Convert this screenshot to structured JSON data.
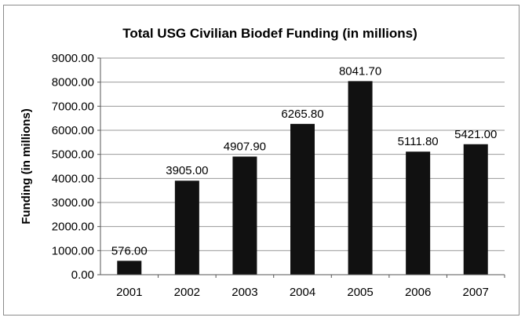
{
  "chart_data": {
    "type": "bar",
    "title": "Total USG Civilian Biodef Funding (in millions)",
    "xlabel": "",
    "ylabel": "Funding (in millions)",
    "categories": [
      "2001",
      "2002",
      "2003",
      "2004",
      "2005",
      "2006",
      "2007"
    ],
    "values": [
      576.0,
      3905.0,
      4907.9,
      6265.8,
      8041.7,
      5111.8,
      5421.0
    ],
    "value_labels": [
      "576.00",
      "3905.00",
      "4907.90",
      "6265.80",
      "8041.70",
      "5111.80",
      "5421.00"
    ],
    "ylim": [
      0,
      9000
    ],
    "yticks": [
      0,
      1000,
      2000,
      3000,
      4000,
      5000,
      6000,
      7000,
      8000,
      9000
    ],
    "ytick_labels": [
      "0.00",
      "1000.00",
      "2000.00",
      "3000.00",
      "4000.00",
      "5000.00",
      "6000.00",
      "7000.00",
      "8000.00",
      "9000.00"
    ],
    "grid": true,
    "legend": "none",
    "bar_color": "#111111"
  }
}
